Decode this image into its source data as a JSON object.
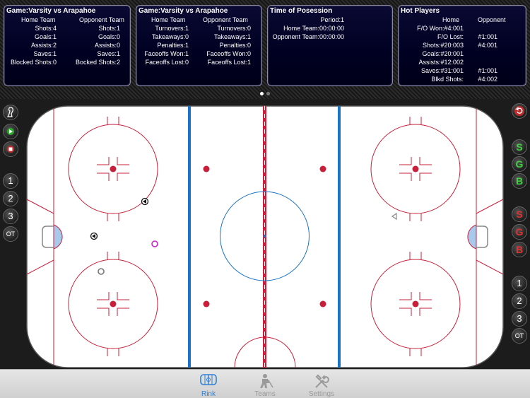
{
  "colors": {
    "accent": "#2f7fd8",
    "rink_red": "#c8203a",
    "rink_blue": "#1a73c7",
    "panel_bg": "#000022",
    "tab_active": "#2f7fd8",
    "tab_inactive": "#9a9a9a"
  },
  "panels": {
    "game1": {
      "title": "Game:Varsity vs Arapahoe",
      "home_header": "Home Team",
      "opp_header": "Opponent Team",
      "rows": [
        {
          "home": "Shots:4",
          "opp": "Shots:1"
        },
        {
          "home": "Goals:1",
          "opp": "Goals:0"
        },
        {
          "home": "Assists:2",
          "opp": "Assists:0"
        },
        {
          "home": "Saves:1",
          "opp": "Saves:1"
        },
        {
          "home": "Blocked Shots:0",
          "opp": "Bocked Shots:2"
        }
      ]
    },
    "game2": {
      "title": "Game:Varsity vs Arapahoe",
      "home_header": "Home Team",
      "opp_header": "Opponent Team",
      "rows": [
        {
          "home": "Turnovers:1",
          "opp": "Turnovers:0"
        },
        {
          "home": "Takeaways:0",
          "opp": "Takeaways:1"
        },
        {
          "home": "Penalties:1",
          "opp": "Penalties:0"
        },
        {
          "home": "Faceoffs Won:1",
          "opp": "Faceoffs Won:0"
        },
        {
          "home": "Faceoffs Lost:0",
          "opp": "Faceoffs Lost:1"
        }
      ]
    },
    "possession": {
      "title": "Time of Posession",
      "rows": [
        {
          "text": "Period:1"
        },
        {
          "text": "Home Team:00:00:00"
        },
        {
          "text": "Opponent Team:00:00:00"
        }
      ]
    },
    "hot": {
      "title": "Hot Players",
      "home_header": "Home",
      "opp_header": "Opponent",
      "rows": [
        {
          "home": "F/O Won:#4:001",
          "opp": ""
        },
        {
          "home": "F/O Lost:",
          "opp": "#1:001"
        },
        {
          "home": "Shots:#20:003",
          "opp": "#4:001"
        },
        {
          "home": "Goals:#20:001",
          "opp": ""
        },
        {
          "home": "Assists:#12:002",
          "opp": ""
        },
        {
          "home": "Saves:#31:001",
          "opp": "#1:001"
        },
        {
          "home": "Blkd Shots:",
          "opp": "#4:002"
        }
      ]
    }
  },
  "left_rail": {
    "icons": [
      "skater-icon",
      "play-icon",
      "stop-icon"
    ],
    "periods": [
      "1",
      "2",
      "3",
      "OT"
    ]
  },
  "right_rail": {
    "undo_icon": "undo-icon",
    "home_buttons": [
      "S",
      "G",
      "B"
    ],
    "away_buttons": [
      "S",
      "G",
      "B"
    ],
    "periods": [
      "1",
      "2",
      "3",
      "OT"
    ]
  },
  "rink_markers": [
    {
      "type": "dark-triangle-left",
      "label": "shot"
    },
    {
      "type": "dark-triangle-left",
      "label": "shot"
    },
    {
      "type": "magenta-circle",
      "label": "goal"
    },
    {
      "type": "grey-circle",
      "label": "save"
    },
    {
      "type": "grey-triangle-left",
      "label": "shot"
    }
  ],
  "tabs": [
    {
      "label": "Rink",
      "icon": "rink-icon",
      "active": true
    },
    {
      "label": "Teams",
      "icon": "player-icon",
      "active": false
    },
    {
      "label": "Settings",
      "icon": "tools-icon",
      "active": false
    }
  ],
  "page_indicator": {
    "pages": 2,
    "current": 1
  }
}
